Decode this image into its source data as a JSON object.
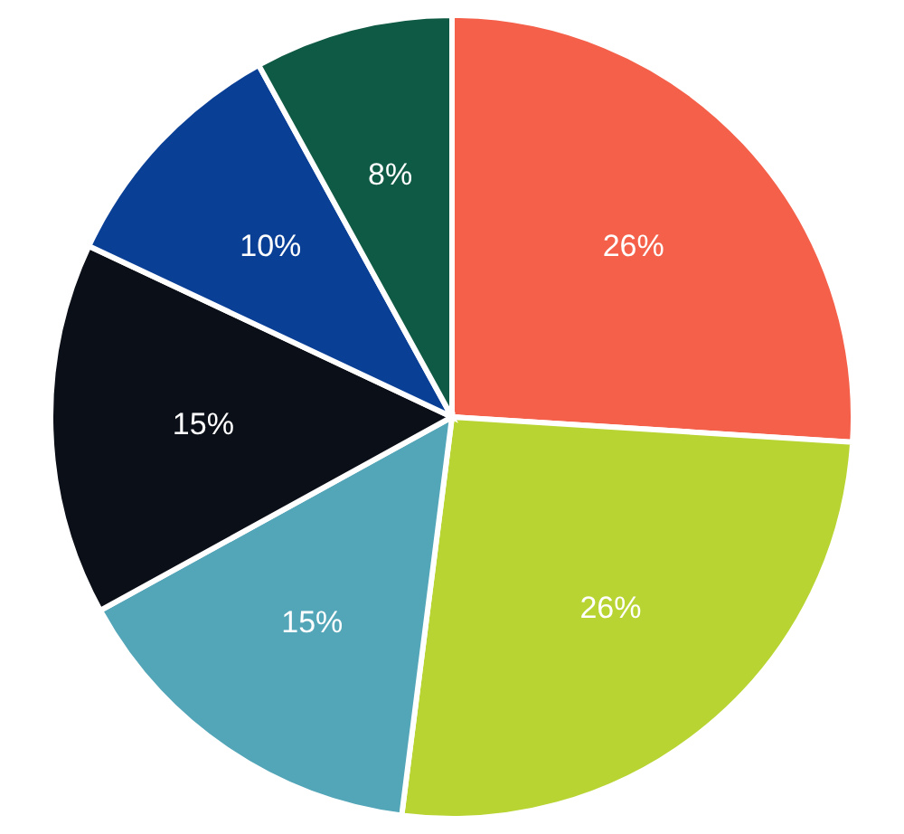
{
  "chart_data": {
    "type": "pie",
    "categories": [
      null,
      null,
      null,
      null,
      null,
      null
    ],
    "values": [
      26,
      26,
      15,
      15,
      10,
      8
    ],
    "colors": [
      "#f4604a",
      "#b8d432",
      "#53a5b8",
      "#0b0f18",
      "#0a3f96",
      "#0f5a44"
    ],
    "value_labels": [
      "26%",
      "26%",
      "15%",
      "15%",
      "10%",
      "8%"
    ]
  }
}
